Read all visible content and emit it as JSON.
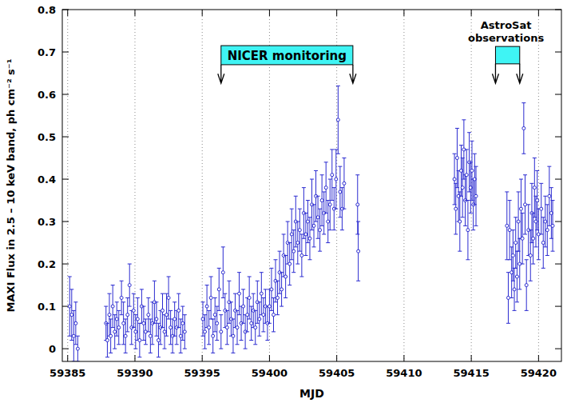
{
  "chart_data": {
    "type": "scatter",
    "x_label": "MJD",
    "y_label": "MAXI Flux in 2.5 – 10 keV band, ph cm⁻² s⁻¹",
    "color": "#2b2bd0",
    "marker": "circle",
    "grid": "x",
    "xlim": [
      59384.6,
      59421.7
    ],
    "ylim": [
      -0.03,
      0.8
    ],
    "xticks": [
      59385,
      59390,
      59395,
      59400,
      59405,
      59410,
      59415,
      59420
    ],
    "yticks": [
      0,
      0.1,
      0.2,
      0.3,
      0.4,
      0.5,
      0.6,
      0.7,
      0.8
    ],
    "x": [
      59385.15,
      59385.3,
      59385.45,
      59385.6,
      59385.75,
      59387.85,
      59387.95,
      59388.1,
      59388.2,
      59388.35,
      59388.5,
      59388.65,
      59388.8,
      59389.0,
      59389.15,
      59389.3,
      59389.45,
      59389.6,
      59389.75,
      59389.9,
      59390.05,
      59390.2,
      59390.35,
      59390.5,
      59390.65,
      59390.8,
      59391.0,
      59391.15,
      59391.3,
      59391.45,
      59391.6,
      59391.75,
      59391.9,
      59392.05,
      59392.2,
      59392.35,
      59392.5,
      59392.65,
      59392.8,
      59392.95,
      59393.1,
      59393.25,
      59393.4,
      59393.55,
      59393.7,
      59395.05,
      59395.2,
      59395.35,
      59395.5,
      59395.65,
      59395.8,
      59395.95,
      59396.1,
      59396.25,
      59396.4,
      59396.55,
      59396.7,
      59396.85,
      59397.0,
      59397.15,
      59397.3,
      59397.45,
      59397.6,
      59397.75,
      59397.9,
      59398.05,
      59398.2,
      59398.35,
      59398.5,
      59398.65,
      59398.8,
      59398.95,
      59399.1,
      59399.25,
      59399.4,
      59399.55,
      59399.7,
      59399.85,
      59400.0,
      59400.15,
      59400.3,
      59400.45,
      59400.6,
      59400.75,
      59400.9,
      59401.05,
      59401.2,
      59401.35,
      59401.5,
      59401.65,
      59401.8,
      59401.95,
      59402.1,
      59402.25,
      59402.4,
      59402.55,
      59402.7,
      59402.85,
      59403.0,
      59403.15,
      59403.3,
      59403.45,
      59403.6,
      59403.75,
      59403.9,
      59404.05,
      59404.2,
      59404.35,
      59404.5,
      59404.65,
      59404.8,
      59404.95,
      59405.1,
      59405.25,
      59405.4,
      59405.55,
      59406.55,
      59406.6,
      59413.75,
      59413.85,
      59413.95,
      59414.05,
      59414.15,
      59414.25,
      59414.35,
      59414.45,
      59414.55,
      59414.65,
      59414.75,
      59414.85,
      59414.95,
      59415.05,
      59415.15,
      59415.25,
      59415.35,
      59417.65,
      59417.75,
      59417.85,
      59418.0,
      59418.1,
      59418.2,
      59418.3,
      59418.4,
      59418.5,
      59418.6,
      59418.7,
      59418.8,
      59418.9,
      59419.0,
      59419.1,
      59419.25,
      59419.4,
      59419.5,
      59419.6,
      59419.7,
      59419.8,
      59419.9,
      59420.0,
      59420.2,
      59420.35,
      59420.5,
      59420.65,
      59420.8,
      59420.95,
      59421.05
    ],
    "values": [
      0.1,
      0.08,
      0.03,
      0.06,
      0.0,
      0.06,
      0.02,
      0.08,
      0.03,
      0.1,
      0.04,
      0.07,
      0.05,
      0.12,
      0.06,
      0.03,
      0.08,
      0.15,
      0.05,
      0.09,
      0.04,
      0.07,
      0.02,
      0.1,
      0.06,
      0.04,
      0.08,
      0.03,
      0.06,
      0.11,
      0.07,
      0.02,
      0.05,
      0.09,
      0.04,
      0.08,
      0.12,
      0.05,
      0.03,
      0.07,
      0.05,
      0.09,
      0.03,
      0.06,
      0.04,
      0.07,
      0.04,
      0.1,
      0.05,
      0.12,
      0.03,
      0.08,
      0.06,
      0.14,
      0.04,
      0.18,
      0.09,
      0.05,
      0.11,
      0.07,
      0.03,
      0.09,
      0.05,
      0.13,
      0.06,
      0.1,
      0.04,
      0.08,
      0.12,
      0.06,
      0.09,
      0.05,
      0.11,
      0.07,
      0.13,
      0.08,
      0.1,
      0.06,
      0.1,
      0.14,
      0.08,
      0.16,
      0.12,
      0.18,
      0.14,
      0.22,
      0.17,
      0.25,
      0.2,
      0.27,
      0.23,
      0.3,
      0.25,
      0.28,
      0.22,
      0.32,
      0.27,
      0.3,
      0.26,
      0.34,
      0.29,
      0.36,
      0.31,
      0.28,
      0.35,
      0.32,
      0.38,
      0.3,
      0.34,
      0.41,
      0.33,
      0.4,
      0.54,
      0.37,
      0.33,
      0.39,
      0.34,
      0.23,
      0.4,
      0.33,
      0.45,
      0.36,
      0.3,
      0.42,
      0.38,
      0.47,
      0.35,
      0.41,
      0.28,
      0.44,
      0.38,
      0.42,
      0.34,
      0.4,
      0.36,
      0.29,
      0.12,
      0.28,
      0.18,
      0.22,
      0.14,
      0.25,
      0.17,
      0.3,
      0.2,
      0.33,
      0.26,
      0.52,
      0.34,
      0.15,
      0.28,
      0.22,
      0.32,
      0.26,
      0.38,
      0.3,
      0.35,
      0.27,
      0.33,
      0.25,
      0.3,
      0.28,
      0.36,
      0.32,
      0.29
    ],
    "errors": [
      0.07,
      0.06,
      0.06,
      0.05,
      0.03,
      0.04,
      0.04,
      0.05,
      0.04,
      0.05,
      0.04,
      0.04,
      0.04,
      0.04,
      0.05,
      0.04,
      0.04,
      0.05,
      0.04,
      0.04,
      0.04,
      0.05,
      0.04,
      0.04,
      0.04,
      0.03,
      0.04,
      0.04,
      0.05,
      0.05,
      0.04,
      0.04,
      0.04,
      0.04,
      0.04,
      0.05,
      0.05,
      0.04,
      0.04,
      0.04,
      0.04,
      0.04,
      0.04,
      0.04,
      0.04,
      0.04,
      0.04,
      0.05,
      0.04,
      0.05,
      0.04,
      0.04,
      0.04,
      0.05,
      0.04,
      0.06,
      0.04,
      0.04,
      0.05,
      0.04,
      0.04,
      0.04,
      0.04,
      0.05,
      0.04,
      0.04,
      0.04,
      0.04,
      0.05,
      0.04,
      0.04,
      0.04,
      0.05,
      0.04,
      0.05,
      0.04,
      0.04,
      0.04,
      0.04,
      0.05,
      0.04,
      0.05,
      0.04,
      0.05,
      0.04,
      0.05,
      0.05,
      0.05,
      0.05,
      0.06,
      0.05,
      0.06,
      0.05,
      0.05,
      0.05,
      0.06,
      0.05,
      0.05,
      0.05,
      0.06,
      0.05,
      0.06,
      0.05,
      0.05,
      0.06,
      0.05,
      0.06,
      0.05,
      0.06,
      0.06,
      0.05,
      0.07,
      0.08,
      0.06,
      0.05,
      0.06,
      0.07,
      0.07,
      0.06,
      0.06,
      0.07,
      0.06,
      0.07,
      0.06,
      0.07,
      0.07,
      0.06,
      0.06,
      0.07,
      0.07,
      0.06,
      0.07,
      0.06,
      0.06,
      0.07,
      0.08,
      0.06,
      0.07,
      0.06,
      0.06,
      0.05,
      0.06,
      0.06,
      0.07,
      0.06,
      0.07,
      0.06,
      0.06,
      0.07,
      0.06,
      0.06,
      0.06,
      0.07,
      0.06,
      0.07,
      0.06,
      0.07,
      0.06,
      0.06,
      0.06,
      0.06,
      0.06,
      0.07,
      0.06,
      0.06
    ],
    "annotations": [
      {
        "text": "NICER monitoring",
        "x": [
          59396.4,
          59406.2
        ],
        "y": [
          0.67,
          0.715
        ],
        "arrow_to": 0.626
      },
      {
        "text": [
          "AstroSat",
          "observations"
        ],
        "x": [
          59416.8,
          59418.6
        ],
        "y": [
          0.672,
          0.713
        ],
        "arrow_to": 0.626
      }
    ]
  }
}
